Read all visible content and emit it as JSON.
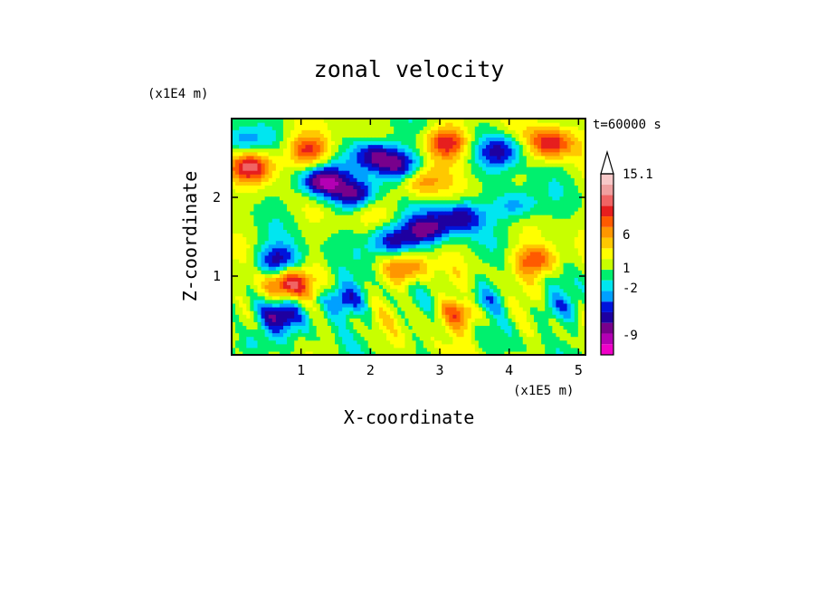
{
  "chart_data": {
    "type": "heatmap",
    "title": "zonal velocity",
    "xlabel": "X-coordinate",
    "ylabel": "Z-coordinate",
    "x_scale_label": "(x1E5 m)",
    "y_scale_label": "(x1E4 m)",
    "time_label": "t=60000 s",
    "xlim": [
      0.0,
      5.1
    ],
    "ylim": [
      0.0,
      3.0
    ],
    "x_ticks": [
      "1",
      "2",
      "3",
      "4",
      "5"
    ],
    "x_tick_values": [
      1,
      2,
      3,
      4,
      5
    ],
    "y_ticks": [
      "1",
      "2"
    ],
    "y_tick_values": [
      1,
      2
    ],
    "colorbar": {
      "colors": [
        "#f000c8",
        "#b400b4",
        "#78008c",
        "#1e00a0",
        "#0014dc",
        "#00a0ff",
        "#00e6f0",
        "#00f06e",
        "#c8ff00",
        "#ffff00",
        "#ffc800",
        "#ff9600",
        "#ff5a00",
        "#e61e1e",
        "#f06464",
        "#f0a0a0",
        "#f8c8c8"
      ],
      "labels": [
        "15.1",
        "6",
        "1",
        "-2",
        "-9"
      ],
      "label_values": [
        15.1,
        6,
        1,
        -2,
        -9
      ]
    },
    "features": [
      {
        "x": 0.3,
        "z": 2.4,
        "u": 9
      },
      {
        "x": 1.1,
        "z": 2.6,
        "u": 8
      },
      {
        "x": 3.1,
        "z": 2.7,
        "u": 9
      },
      {
        "x": 4.6,
        "z": 2.7,
        "u": 9
      },
      {
        "x": 0.8,
        "z": 0.9,
        "u": 10
      },
      {
        "x": 2.5,
        "z": 1.1,
        "u": 7
      },
      {
        "x": 3.3,
        "z": 0.55,
        "u": 8
      },
      {
        "x": 4.4,
        "z": 1.2,
        "u": 8
      },
      {
        "x": 2.7,
        "z": 2.2,
        "u": 6
      },
      {
        "x": 1.9,
        "z": 1.9,
        "u": 5
      },
      {
        "x": 1.3,
        "z": 2.2,
        "u": -11
      },
      {
        "x": 1.8,
        "z": 2.0,
        "u": -10
      },
      {
        "x": 2.05,
        "z": 2.55,
        "u": -9
      },
      {
        "x": 2.4,
        "z": 2.4,
        "u": -9
      },
      {
        "x": 2.3,
        "z": 1.45,
        "u": -9
      },
      {
        "x": 2.8,
        "z": 1.6,
        "u": -8
      },
      {
        "x": 3.3,
        "z": 1.75,
        "u": -8
      },
      {
        "x": 0.65,
        "z": 1.2,
        "u": -8
      },
      {
        "x": 0.7,
        "z": 0.5,
        "u": -7
      },
      {
        "x": 1.6,
        "z": 0.7,
        "u": -7
      },
      {
        "x": 4.1,
        "z": 1.9,
        "u": -6
      },
      {
        "x": 3.9,
        "z": 2.6,
        "u": -7
      },
      {
        "x": 0.15,
        "z": 2.7,
        "u": -5
      },
      {
        "x": 3.6,
        "z": 0.7,
        "u": -5
      },
      {
        "x": 4.7,
        "z": 0.6,
        "u": -4
      },
      {
        "x": 0.3,
        "z": 0.15,
        "u": -4
      }
    ]
  }
}
